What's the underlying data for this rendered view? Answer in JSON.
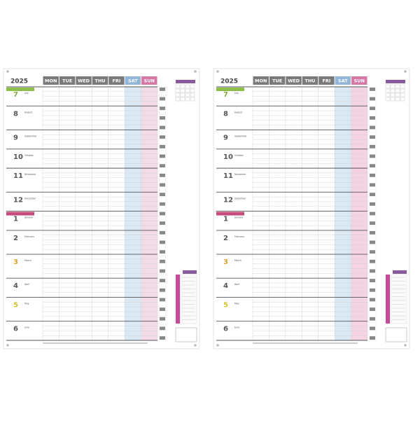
{
  "year": "2025",
  "weekdays": [
    "MON",
    "TUE",
    "WED",
    "THU",
    "FRI",
    "SAT",
    "SUN"
  ],
  "months": [
    {
      "number": "7",
      "name": "July"
    },
    {
      "number": "8",
      "name": "August"
    },
    {
      "number": "9",
      "name": "September"
    },
    {
      "number": "10",
      "name": "October"
    },
    {
      "number": "11",
      "name": "November"
    },
    {
      "number": "12",
      "name": "December"
    },
    {
      "number": "1",
      "name": "January"
    },
    {
      "number": "2",
      "name": "February"
    },
    {
      "number": "3",
      "name": "March"
    },
    {
      "number": "4",
      "name": "April"
    },
    {
      "number": "5",
      "name": "May"
    },
    {
      "number": "6",
      "name": "June"
    }
  ]
}
